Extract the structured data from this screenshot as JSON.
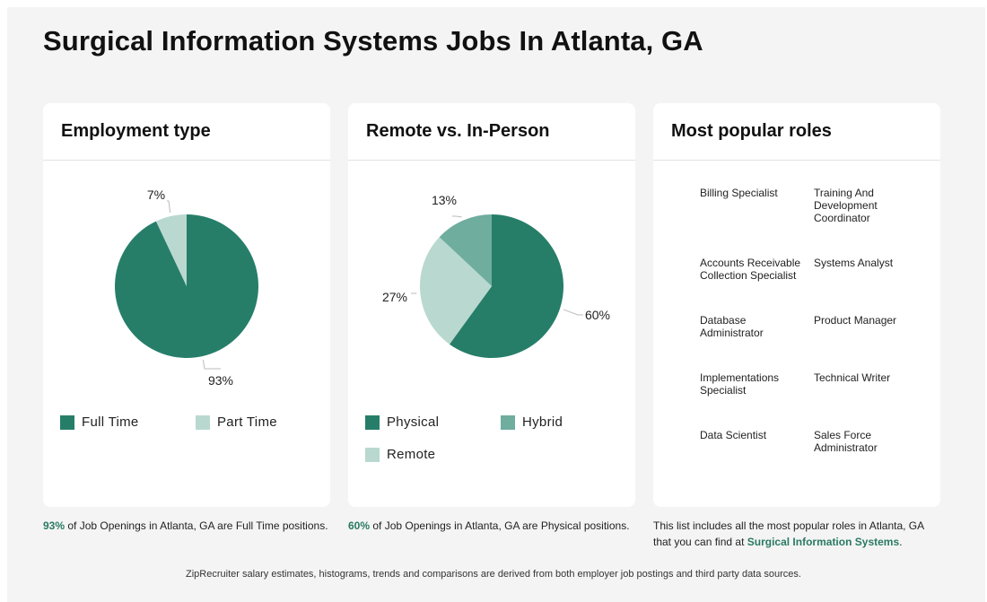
{
  "page": {
    "title": "Surgical Information Systems Jobs In Atlanta, GA",
    "footer": "ZipRecruiter salary estimates, histograms, trends and comparisons are derived from both employer job postings and third party data sources."
  },
  "colors": {
    "dark_green": "#267e69",
    "mid_green": "#6fad9e",
    "light_green": "#b9d8d0"
  },
  "employment": {
    "title": "Employment type",
    "caption_highlight": "93%",
    "caption_rest": " of Job Openings in Atlanta, GA are Full Time positions.",
    "legend": [
      {
        "label": "Full Time",
        "color": "#267e69"
      },
      {
        "label": "Part Time",
        "color": "#b9d8d0"
      }
    ]
  },
  "remote": {
    "title": "Remote vs. In-Person",
    "caption_highlight": "60%",
    "caption_rest": " of Job Openings in Atlanta, GA are Physical positions.",
    "legend": [
      {
        "label": "Physical",
        "color": "#267e69"
      },
      {
        "label": "Hybrid",
        "color": "#6fad9e"
      },
      {
        "label": "Remote",
        "color": "#b9d8d0"
      }
    ]
  },
  "roles": {
    "title": "Most popular roles",
    "items": [
      "Billing Specialist",
      "Training And Development Coordinator",
      "Accounts Receivable Collection Specialist",
      "Systems Analyst",
      "Database Administrator",
      "Product Manager",
      "Implementations Specialist",
      "Technical Writer",
      "Data Scientist",
      "Sales Force Administrator"
    ],
    "caption_line1": "This list includes all the most popular roles in Atlanta, GA",
    "caption_prefix": "that you can find at ",
    "caption_link": "Surgical Information Systems",
    "caption_suffix": "."
  },
  "chart_data": [
    {
      "type": "pie",
      "title": "Employment type",
      "categories": [
        "Full Time",
        "Part Time"
      ],
      "values": [
        93,
        7
      ],
      "labels": [
        "93%",
        "7%"
      ],
      "colors": [
        "#267e69",
        "#b9d8d0"
      ]
    },
    {
      "type": "pie",
      "title": "Remote vs. In-Person",
      "categories": [
        "Physical",
        "Remote",
        "Hybrid"
      ],
      "values": [
        60,
        27,
        13
      ],
      "labels": [
        "60%",
        "27%",
        "13%"
      ],
      "colors": [
        "#267e69",
        "#b9d8d0",
        "#6fad9e"
      ]
    }
  ]
}
